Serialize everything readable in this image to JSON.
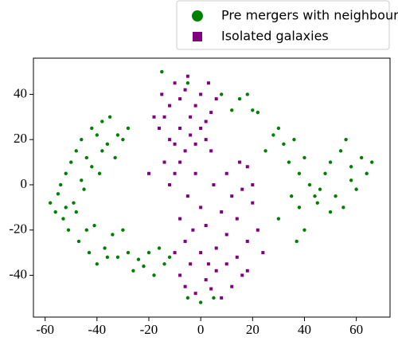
{
  "chart_data": {
    "type": "scatter",
    "xlim": [
      -64.5,
      73
    ],
    "ylim": [
      -58.5,
      56
    ],
    "xticks": [
      -60,
      -40,
      -20,
      0,
      20,
      40,
      60
    ],
    "yticks": [
      -40,
      -20,
      0,
      20,
      40
    ],
    "grid": false,
    "legend": "upper right",
    "series": [
      {
        "name": "Pre mergers with neighbours",
        "color": "#008000",
        "marker": "circle",
        "x": [
          -58,
          -56,
          -55,
          -54,
          -53,
          -52,
          -51,
          -50,
          -49,
          -48,
          -47,
          -46,
          -45,
          -44,
          -43,
          -42,
          -41,
          -40,
          -39,
          -38,
          -37,
          -36,
          -35,
          -34,
          -33,
          -32,
          -30,
          -28,
          -26,
          -24,
          -22,
          -20,
          -18,
          -16,
          -14,
          -12,
          -48,
          -46,
          -52,
          -44,
          -40,
          -36,
          -42,
          -38,
          -30,
          -28,
          -32,
          -15,
          -5,
          8,
          12,
          15,
          18,
          20,
          22,
          25,
          28,
          30,
          32,
          34,
          36,
          38,
          40,
          42,
          35,
          30,
          38,
          40,
          37,
          44,
          46,
          48,
          50,
          52,
          54,
          56,
          58,
          60,
          62,
          64,
          66,
          55,
          50,
          45,
          58,
          -5,
          0,
          5
        ],
        "values": [
          -8,
          -12,
          -4,
          0,
          -15,
          5,
          -20,
          10,
          -8,
          15,
          -25,
          20,
          -2,
          12,
          -30,
          25,
          -18,
          22,
          5,
          28,
          -28,
          18,
          30,
          -22,
          12,
          -32,
          -20,
          -30,
          -38,
          -33,
          -36,
          -30,
          -40,
          -28,
          -35,
          -32,
          -12,
          2,
          -10,
          -20,
          -35,
          -32,
          8,
          15,
          20,
          25,
          22,
          50,
          45,
          40,
          33,
          38,
          40,
          33,
          32,
          15,
          22,
          25,
          18,
          10,
          20,
          5,
          12,
          0,
          -5,
          -15,
          -10,
          -20,
          -25,
          -5,
          -2,
          5,
          10,
          -5,
          15,
          20,
          8,
          -2,
          12,
          5,
          10,
          -10,
          -12,
          -8,
          2,
          -50,
          -52,
          -50
        ]
      },
      {
        "name": "Isolated galaxies",
        "color": "#800080",
        "marker": "square",
        "x": [
          -15,
          -14,
          -12,
          -10,
          -8,
          -6,
          -4,
          -2,
          0,
          2,
          4,
          6,
          -12,
          -10,
          -8,
          -6,
          -4,
          -2,
          0,
          2,
          4,
          -14,
          -12,
          -10,
          -8,
          -16,
          -18,
          -20,
          -5,
          3,
          -5,
          0,
          5,
          10,
          15,
          18,
          -3,
          2,
          8,
          12,
          16,
          20,
          22,
          18,
          14,
          10,
          6,
          0,
          -4,
          -8,
          -6,
          -2,
          2,
          6,
          10,
          14,
          18,
          12,
          8,
          4,
          -10,
          -8,
          -6,
          24,
          20,
          16,
          -2,
          3
        ],
        "values": [
          40,
          30,
          35,
          45,
          38,
          42,
          30,
          35,
          40,
          28,
          32,
          38,
          20,
          18,
          25,
          15,
          22,
          18,
          25,
          20,
          15,
          10,
          0,
          5,
          10,
          25,
          30,
          5,
          48,
          45,
          -5,
          -10,
          0,
          5,
          10,
          8,
          -20,
          -18,
          -12,
          -5,
          -2,
          -8,
          -20,
          -25,
          -15,
          -22,
          -28,
          -30,
          -35,
          -40,
          -45,
          -48,
          -42,
          -38,
          -35,
          -32,
          -38,
          -45,
          -50,
          -46,
          -30,
          -15,
          -25,
          -30,
          0,
          -40,
          5,
          -35
        ]
      }
    ]
  }
}
